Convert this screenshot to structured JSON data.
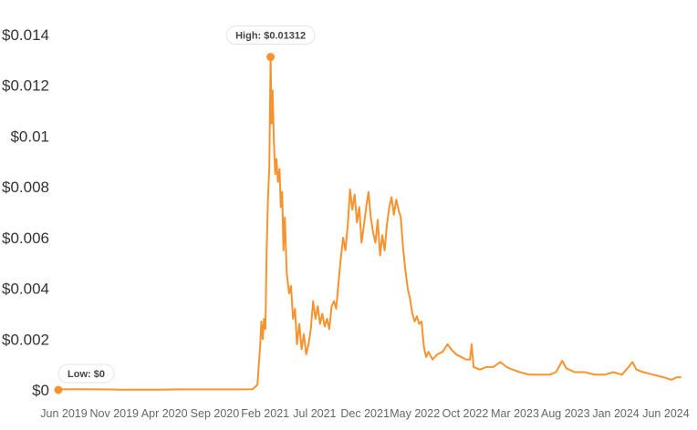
{
  "chart_data": {
    "type": "line",
    "title": "",
    "xlabel": "",
    "ylabel": "",
    "ylim": [
      0,
      0.014
    ],
    "grid": false,
    "legend": "none",
    "line_color": "#f7932f",
    "y_ticks": [
      {
        "value": 0,
        "label": "$0"
      },
      {
        "value": 0.002,
        "label": "$0.002"
      },
      {
        "value": 0.004,
        "label": "$0.004"
      },
      {
        "value": 0.006,
        "label": "$0.006"
      },
      {
        "value": 0.008,
        "label": "$0.008"
      },
      {
        "value": 0.01,
        "label": "$0.01"
      },
      {
        "value": 0.012,
        "label": "$0.012"
      },
      {
        "value": 0.014,
        "label": "$0.014"
      }
    ],
    "x_ticks": [
      {
        "date": "2019-06-01",
        "label": "Jun 2019"
      },
      {
        "date": "2019-11-01",
        "label": "Nov 2019"
      },
      {
        "date": "2020-04-01",
        "label": "Apr 2020"
      },
      {
        "date": "2020-09-01",
        "label": "Sep 2020"
      },
      {
        "date": "2021-02-01",
        "label": "Feb 2021"
      },
      {
        "date": "2021-07-01",
        "label": "Jul 2021"
      },
      {
        "date": "2021-12-01",
        "label": "Dec 2021"
      },
      {
        "date": "2022-05-01",
        "label": "May 2022"
      },
      {
        "date": "2022-10-01",
        "label": "Oct 2022"
      },
      {
        "date": "2023-03-01",
        "label": "Mar 2023"
      },
      {
        "date": "2023-08-01",
        "label": "Aug 2023"
      },
      {
        "date": "2024-01-01",
        "label": "Jan 2024"
      },
      {
        "date": "2024-06-01",
        "label": "Jun 2024"
      }
    ],
    "x_range": [
      "2019-06-01",
      "2024-08-01"
    ],
    "series": [
      {
        "name": "",
        "points": [
          [
            "2019-06-01",
            2e-05
          ],
          [
            "2019-08-01",
            3e-05
          ],
          [
            "2019-10-01",
            2e-05
          ],
          [
            "2019-12-01",
            1e-05
          ],
          [
            "2020-02-01",
            1e-05
          ],
          [
            "2020-04-01",
            1e-05
          ],
          [
            "2020-06-01",
            2e-05
          ],
          [
            "2020-08-01",
            2e-05
          ],
          [
            "2020-10-01",
            2e-05
          ],
          [
            "2020-12-01",
            2e-05
          ],
          [
            "2021-01-10",
            3e-05
          ],
          [
            "2021-01-25",
            0.0002
          ],
          [
            "2021-02-03",
            0.0019
          ],
          [
            "2021-02-06",
            0.0027
          ],
          [
            "2021-02-10",
            0.002
          ],
          [
            "2021-02-14",
            0.0028
          ],
          [
            "2021-02-18",
            0.0024
          ],
          [
            "2021-02-22",
            0.0055
          ],
          [
            "2021-02-26",
            0.0075
          ],
          [
            "2021-03-02",
            0.0088
          ],
          [
            "2021-03-06",
            0.01312
          ],
          [
            "2021-03-09",
            0.0105
          ],
          [
            "2021-03-12",
            0.0118
          ],
          [
            "2021-03-16",
            0.0098
          ],
          [
            "2021-03-20",
            0.0085
          ],
          [
            "2021-03-24",
            0.0091
          ],
          [
            "2021-03-28",
            0.0082
          ],
          [
            "2021-04-02",
            0.0087
          ],
          [
            "2021-04-06",
            0.0072
          ],
          [
            "2021-04-10",
            0.0078
          ],
          [
            "2021-04-14",
            0.0055
          ],
          [
            "2021-04-18",
            0.0068
          ],
          [
            "2021-04-24",
            0.0046
          ],
          [
            "2021-05-01",
            0.0038
          ],
          [
            "2021-05-07",
            0.0041
          ],
          [
            "2021-05-13",
            0.0028
          ],
          [
            "2021-05-19",
            0.0032
          ],
          [
            "2021-05-25",
            0.0018
          ],
          [
            "2021-06-01",
            0.0026
          ],
          [
            "2021-06-08",
            0.0016
          ],
          [
            "2021-06-15",
            0.0022
          ],
          [
            "2021-06-22",
            0.0014
          ],
          [
            "2021-06-29",
            0.0018
          ],
          [
            "2021-07-06",
            0.0024
          ],
          [
            "2021-07-13",
            0.0035
          ],
          [
            "2021-07-20",
            0.0028
          ],
          [
            "2021-07-27",
            0.0033
          ],
          [
            "2021-08-03",
            0.0026
          ],
          [
            "2021-08-10",
            0.003
          ],
          [
            "2021-08-17",
            0.0025
          ],
          [
            "2021-08-24",
            0.0028
          ],
          [
            "2021-08-31",
            0.0024
          ],
          [
            "2021-09-07",
            0.0033
          ],
          [
            "2021-09-14",
            0.0035
          ],
          [
            "2021-09-21",
            0.0032
          ],
          [
            "2021-09-28",
            0.0042
          ],
          [
            "2021-10-05",
            0.0052
          ],
          [
            "2021-10-12",
            0.006
          ],
          [
            "2021-10-19",
            0.0055
          ],
          [
            "2021-10-26",
            0.0065
          ],
          [
            "2021-11-02",
            0.0079
          ],
          [
            "2021-11-09",
            0.0071
          ],
          [
            "2021-11-16",
            0.0077
          ],
          [
            "2021-11-23",
            0.0066
          ],
          [
            "2021-11-30",
            0.0072
          ],
          [
            "2021-12-07",
            0.0058
          ],
          [
            "2021-12-14",
            0.0065
          ],
          [
            "2021-12-21",
            0.0072
          ],
          [
            "2021-12-28",
            0.0078
          ],
          [
            "2022-01-04",
            0.0068
          ],
          [
            "2022-01-11",
            0.0062
          ],
          [
            "2022-01-18",
            0.0058
          ],
          [
            "2022-01-25",
            0.0067
          ],
          [
            "2022-02-01",
            0.0053
          ],
          [
            "2022-02-08",
            0.0061
          ],
          [
            "2022-02-15",
            0.0055
          ],
          [
            "2022-02-22",
            0.0065
          ],
          [
            "2022-03-01",
            0.0072
          ],
          [
            "2022-03-08",
            0.0076
          ],
          [
            "2022-03-15",
            0.0069
          ],
          [
            "2022-03-22",
            0.0075
          ],
          [
            "2022-03-29",
            0.0071
          ],
          [
            "2022-04-05",
            0.0068
          ],
          [
            "2022-04-12",
            0.0056
          ],
          [
            "2022-04-19",
            0.0047
          ],
          [
            "2022-04-26",
            0.004
          ],
          [
            "2022-05-03",
            0.0036
          ],
          [
            "2022-05-10",
            0.003
          ],
          [
            "2022-05-17",
            0.0027
          ],
          [
            "2022-05-24",
            0.0029
          ],
          [
            "2022-05-31",
            0.0026
          ],
          [
            "2022-06-07",
            0.0027
          ],
          [
            "2022-06-14",
            0.0017
          ],
          [
            "2022-06-21",
            0.0013
          ],
          [
            "2022-06-28",
            0.0015
          ],
          [
            "2022-07-10",
            0.0012
          ],
          [
            "2022-07-25",
            0.0014
          ],
          [
            "2022-08-10",
            0.0015
          ],
          [
            "2022-08-25",
            0.0018
          ],
          [
            "2022-09-05",
            0.0016
          ],
          [
            "2022-09-20",
            0.0014
          ],
          [
            "2022-10-05",
            0.0013
          ],
          [
            "2022-10-20",
            0.0012
          ],
          [
            "2022-11-01",
            0.0012
          ],
          [
            "2022-11-06",
            0.0018
          ],
          [
            "2022-11-12",
            0.0009
          ],
          [
            "2022-12-01",
            0.0008
          ],
          [
            "2022-12-20",
            0.0009
          ],
          [
            "2023-01-10",
            0.0009
          ],
          [
            "2023-02-01",
            0.0011
          ],
          [
            "2023-02-20",
            0.0009
          ],
          [
            "2023-03-10",
            0.0008
          ],
          [
            "2023-04-01",
            0.0007
          ],
          [
            "2023-05-01",
            0.0006
          ],
          [
            "2023-06-01",
            0.0006
          ],
          [
            "2023-07-01",
            0.0006
          ],
          [
            "2023-07-20",
            0.0007
          ],
          [
            "2023-08-08",
            0.00115
          ],
          [
            "2023-08-20",
            0.00085
          ],
          [
            "2023-09-15",
            0.0007
          ],
          [
            "2023-10-15",
            0.0007
          ],
          [
            "2023-11-15",
            0.0006
          ],
          [
            "2023-12-15",
            0.0006
          ],
          [
            "2024-01-10",
            0.0007
          ],
          [
            "2024-02-05",
            0.0006
          ],
          [
            "2024-02-25",
            0.0009
          ],
          [
            "2024-03-08",
            0.0011
          ],
          [
            "2024-03-20",
            0.0008
          ],
          [
            "2024-04-10",
            0.0007
          ],
          [
            "2024-05-10",
            0.0006
          ],
          [
            "2024-06-10",
            0.0005
          ],
          [
            "2024-07-05",
            0.0004
          ],
          [
            "2024-07-20",
            0.0005
          ],
          [
            "2024-08-01",
            0.0005
          ]
        ]
      }
    ],
    "annotations": [
      {
        "date": "2021-03-06",
        "value": 0.01312,
        "label": "High: $0.01312"
      },
      {
        "date": "2019-06-01",
        "value": 0,
        "label": "Low: $0"
      }
    ]
  }
}
